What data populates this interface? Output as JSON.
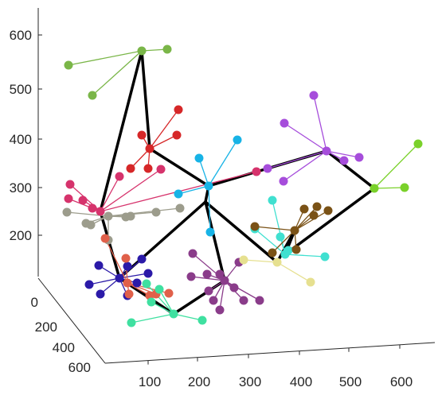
{
  "chart_data": {
    "type": "scatter",
    "title": "",
    "xlabel": "",
    "ylabel": "",
    "zlabel": "",
    "grid": false,
    "xlim": [
      0,
      700
    ],
    "ylim": [
      0,
      700
    ],
    "zlim": [
      100,
      650
    ],
    "x_ticks": [
      "100",
      "200",
      "300",
      "400",
      "500",
      "600"
    ],
    "y_ticks": [
      "0",
      "200",
      "400",
      "600"
    ],
    "z_ticks": [
      "200",
      "300",
      "400",
      "500",
      "600"
    ],
    "colors": {
      "green_top": "#7ab648",
      "red": "#d62728",
      "crimson": "#d6336c",
      "grey": "#9c9c8c",
      "cyan": "#17b3e6",
      "purple": "#a64ddb",
      "lime": "#7ad12a",
      "navy": "#2b1aa8",
      "salmon": "#e0604a",
      "mint": "#3fe0a0",
      "plum": "#8a3c8a",
      "turquoise": "#40e0d0",
      "khaki": "#e6e090",
      "brown": "#7a5216",
      "skeleton": "#000000"
    },
    "skeleton_nodes": [
      {
        "id": "A",
        "point": [
          178,
          64
        ]
      },
      {
        "id": "B",
        "point": [
          188,
          187
        ]
      },
      {
        "id": "C",
        "point": [
          262,
          234
        ]
      },
      {
        "id": "D",
        "point": [
          126,
          266
        ]
      },
      {
        "id": "E",
        "point": [
          258,
          254
        ]
      },
      {
        "id": "F",
        "point": [
          410,
          190
        ]
      },
      {
        "id": "G",
        "point": [
          470,
          237
        ]
      },
      {
        "id": "H",
        "point": [
          150,
          350
        ]
      },
      {
        "id": "I",
        "point": [
          218,
          395
        ]
      },
      {
        "id": "J",
        "point": [
          282,
          353
        ]
      },
      {
        "id": "K",
        "point": [
          348,
          330
        ]
      },
      {
        "id": "L",
        "point": [
          370,
          290
        ]
      },
      {
        "id": "M",
        "point": [
          358,
          320
        ]
      }
    ],
    "skeleton_edges": [
      [
        "A",
        "D"
      ],
      [
        "A",
        "B"
      ],
      [
        "B",
        "C"
      ],
      [
        "C",
        "F"
      ],
      [
        "F",
        "G"
      ],
      [
        "G",
        "M"
      ],
      [
        "M",
        "L"
      ],
      [
        "L",
        "K"
      ],
      [
        "K",
        "E"
      ],
      [
        "E",
        "C"
      ],
      [
        "E",
        "J"
      ],
      [
        "E",
        "H"
      ],
      [
        "D",
        "H"
      ],
      [
        "H",
        "I"
      ],
      [
        "I",
        "J"
      ]
    ],
    "clusters": [
      {
        "color_key": "green_top",
        "hub": [
          178,
          64
        ],
        "leaves": [
          [
            86,
            82
          ],
          [
            116,
            120
          ],
          [
            210,
            62
          ]
        ]
      },
      {
        "color_key": "red",
        "hub": [
          188,
          187
        ],
        "leaves": [
          [
            224,
            138
          ],
          [
            178,
            170
          ],
          [
            222,
            170
          ],
          [
            164,
            212
          ],
          [
            186,
            212
          ]
        ]
      },
      {
        "color_key": "crimson",
        "hub": [
          126,
          266
        ],
        "leaves": [
          [
            88,
            232
          ],
          [
            86,
            250
          ],
          [
            104,
            252
          ],
          [
            116,
            262
          ],
          [
            150,
            222
          ],
          [
            202,
            213
          ],
          [
            322,
            216
          ]
        ]
      },
      {
        "color_key": "grey",
        "hub": [
          136,
          272
        ],
        "leaves": [
          [
            84,
            267
          ],
          [
            108,
            281
          ],
          [
            114,
            283
          ],
          [
            158,
            273
          ],
          [
            164,
            272
          ],
          [
            196,
            267
          ],
          [
            226,
            262
          ],
          [
            136,
            302
          ]
        ]
      },
      {
        "color_key": "cyan",
        "hub": [
          262,
          234
        ],
        "leaves": [
          [
            250,
            199
          ],
          [
            298,
            176
          ],
          [
            224,
            244
          ],
          [
            264,
            292
          ]
        ]
      },
      {
        "color_key": "purple",
        "hub": [
          410,
          190
        ],
        "leaves": [
          [
            394,
            120
          ],
          [
            357,
            155
          ],
          [
            336,
            212
          ],
          [
            356,
            228
          ],
          [
            451,
            198
          ],
          [
            432,
            202
          ]
        ]
      },
      {
        "color_key": "lime",
        "hub": [
          470,
          237
        ],
        "leaves": [
          [
            525,
            181
          ],
          [
            508,
            236
          ]
        ]
      },
      {
        "color_key": "navy",
        "hub": [
          150,
          350
        ],
        "leaves": [
          [
            124,
            334
          ],
          [
            112,
            358
          ],
          [
            126,
            370
          ],
          [
            160,
            335
          ],
          [
            178,
            326
          ],
          [
            186,
            344
          ],
          [
            172,
            356
          ],
          [
            160,
            372
          ]
        ]
      },
      {
        "color_key": "salmon",
        "hub": [
          160,
          356
        ],
        "leaves": [
          [
            132,
            300
          ],
          [
            158,
            325
          ],
          [
            196,
            370
          ],
          [
            212,
            369
          ],
          [
            188,
            372
          ],
          [
            162,
            370
          ]
        ]
      },
      {
        "color_key": "mint",
        "hub": [
          218,
          395
        ],
        "leaves": [
          [
            165,
            406
          ],
          [
            254,
            403
          ],
          [
            200,
            364
          ],
          [
            184,
            357
          ],
          [
            190,
            380
          ]
        ]
      },
      {
        "color_key": "plum",
        "hub": [
          282,
          353
        ],
        "leaves": [
          [
            242,
            319
          ],
          [
            240,
            348
          ],
          [
            260,
            345
          ],
          [
            276,
            345
          ],
          [
            294,
            362
          ],
          [
            300,
            330
          ],
          [
            268,
            378
          ],
          [
            276,
            390
          ],
          [
            306,
            378
          ],
          [
            326,
            378
          ],
          [
            262,
            366
          ]
        ]
      },
      {
        "color_key": "turquoise",
        "hub": [
          358,
          320
        ],
        "leaves": [
          [
            342,
            252
          ],
          [
            320,
            288
          ],
          [
            352,
            298
          ],
          [
            408,
            323
          ],
          [
            362,
            315
          ]
        ]
      },
      {
        "color_key": "khaki",
        "hub": [
          348,
          330
        ],
        "leaves": [
          [
            306,
            327
          ],
          [
            390,
            355
          ]
        ]
      },
      {
        "color_key": "brown",
        "hub": [
          370,
          290
        ],
        "leaves": [
          [
            382,
            263
          ],
          [
            398,
            260
          ],
          [
            412,
            265
          ],
          [
            394,
            271
          ],
          [
            320,
            285
          ],
          [
            342,
            318
          ],
          [
            372,
            314
          ]
        ]
      }
    ]
  }
}
